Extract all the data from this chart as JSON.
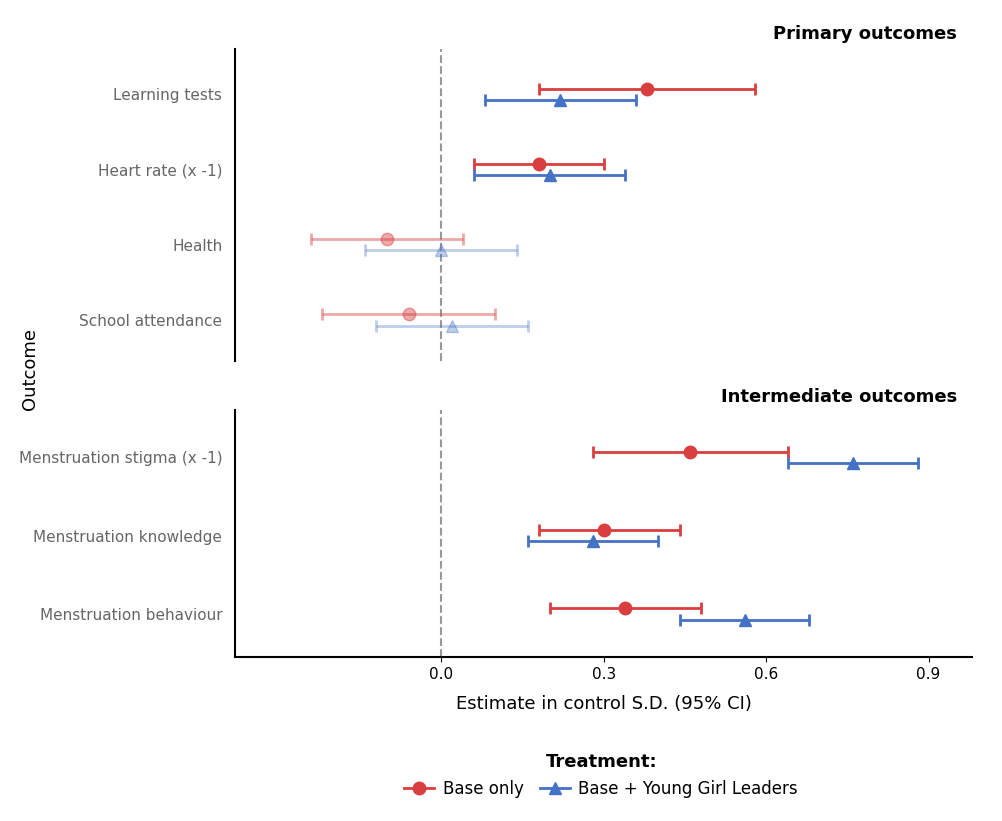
{
  "primary_outcomes": {
    "labels": [
      "Learning tests",
      "Heart rate (x -1)",
      "Health",
      "School attendance"
    ],
    "base_only": {
      "values": [
        0.38,
        0.18,
        -0.1,
        -0.06
      ],
      "ci_low": [
        0.18,
        0.06,
        -0.24,
        -0.22
      ],
      "ci_high": [
        0.58,
        0.3,
        0.04,
        0.1
      ],
      "color": "#d93f3f",
      "alpha": [
        1.0,
        1.0,
        0.45,
        0.45
      ]
    },
    "base_plus": {
      "values": [
        0.22,
        0.2,
        0.0,
        0.02
      ],
      "ci_low": [
        0.08,
        0.06,
        -0.14,
        -0.12
      ],
      "ci_high": [
        0.36,
        0.34,
        0.14,
        0.16
      ],
      "color": "#4472c4",
      "alpha": [
        1.0,
        1.0,
        0.35,
        0.35
      ]
    }
  },
  "intermediate_outcomes": {
    "labels": [
      "Menstruation stigma (x -1)",
      "Menstruation knowledge",
      "Menstruation behaviour"
    ],
    "base_only": {
      "values": [
        0.46,
        0.3,
        0.34
      ],
      "ci_low": [
        0.28,
        0.18,
        0.2
      ],
      "ci_high": [
        0.64,
        0.44,
        0.48
      ],
      "color": "#d93f3f",
      "alpha": [
        1.0,
        1.0,
        1.0
      ]
    },
    "base_plus": {
      "values": [
        0.76,
        0.28,
        0.56
      ],
      "ci_low": [
        0.64,
        0.16,
        0.44
      ],
      "ci_high": [
        0.88,
        0.4,
        0.68
      ],
      "color": "#4472c4",
      "alpha": [
        1.0,
        1.0,
        1.0
      ]
    }
  },
  "xlabel": "Estimate in control S.D. (95% CI)",
  "ylabel": "Outcome",
  "xlim": [
    -0.38,
    0.98
  ],
  "xticks": [
    0.0,
    0.3,
    0.6,
    0.9
  ],
  "xticklabels": [
    "0.0",
    "0.3",
    "0.6",
    "0.9"
  ],
  "primary_title": "Primary outcomes",
  "intermediate_title": "Intermediate outcomes",
  "legend_title": "Treatment:",
  "legend_base_label": "Base only",
  "legend_plus_label": "Base + Young Girl Leaders",
  "ylabel_color": "#555555",
  "label_color": "#666666"
}
